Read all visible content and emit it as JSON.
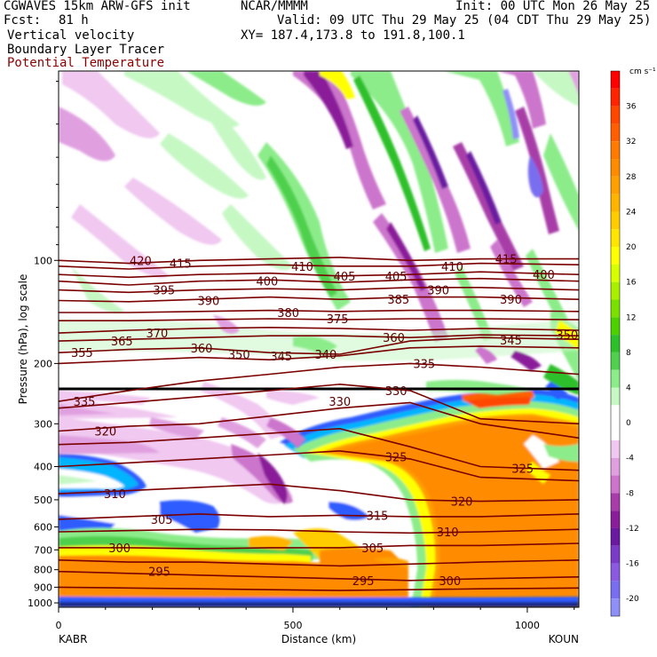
{
  "header": {
    "model": "CGWAVES 15km ARW-GFS init",
    "org": "NCAR/MMMM",
    "init": "Init: 00 UTC Mon 26 May 25",
    "fcst_label": "Fcst:",
    "fcst_value": "81 h",
    "valid": "Valid: 09 UTC Thu 29 May 25 (04 CDT Thu 29 May 25)",
    "xy": "XY= 187.4,173.8 to 191.8,100.1",
    "fields": [
      "Vertical velocity",
      "Boundary Layer Tracer",
      "Potential Temperature"
    ]
  },
  "colors": {
    "contour_theta": "#7a0000",
    "potential_temperature_label": "#8b0000",
    "background": "#ffffff"
  },
  "chart_data": {
    "type": "heatmap",
    "title": "",
    "xlabel": "Distance (km)",
    "ylabel": "Pressure (hPa), log scale",
    "x_ticks": [
      "0",
      "500",
      "1000"
    ],
    "x_tick_values": [
      0,
      500,
      1000
    ],
    "x_range": [
      0,
      1110
    ],
    "y_ticks": [
      "100",
      "200",
      "300",
      "400",
      "500",
      "600",
      "700",
      "800",
      "900",
      "1000"
    ],
    "y_tick_values": [
      100,
      200,
      300,
      400,
      500,
      600,
      700,
      800,
      900,
      1000
    ],
    "y_range_hpa": [
      1030,
      28
    ],
    "y_scale": "log",
    "endpoints": {
      "left": "KABR",
      "right": "KOUN"
    },
    "colorbar": {
      "units": "cm s⁻¹",
      "tick_labels": [
        "36",
        "32",
        "28",
        "24",
        "20",
        "16",
        "12",
        "8",
        "4",
        "0",
        "-4",
        "-8",
        "-12",
        "-16",
        "-20"
      ],
      "tick_values": [
        36,
        32,
        28,
        24,
        20,
        16,
        12,
        8,
        4,
        0,
        -4,
        -8,
        -12,
        -16,
        -20
      ],
      "levels": [
        {
          "min": 38,
          "max": 40,
          "color": "#ff0000"
        },
        {
          "min": 36,
          "max": 38,
          "color": "#ff2400"
        },
        {
          "min": 34,
          "max": 36,
          "color": "#ff4700"
        },
        {
          "min": 32,
          "max": 34,
          "color": "#ff5f00"
        },
        {
          "min": 30,
          "max": 32,
          "color": "#ff7a00"
        },
        {
          "min": 28,
          "max": 30,
          "color": "#ff8c00"
        },
        {
          "min": 26,
          "max": 28,
          "color": "#ffa000"
        },
        {
          "min": 24,
          "max": 26,
          "color": "#ffb400"
        },
        {
          "min": 22,
          "max": 24,
          "color": "#ffcc00"
        },
        {
          "min": 20,
          "max": 22,
          "color": "#ffe600"
        },
        {
          "min": 18,
          "max": 20,
          "color": "#ffff00"
        },
        {
          "min": 16,
          "max": 18,
          "color": "#d8ff00"
        },
        {
          "min": 14,
          "max": 16,
          "color": "#a8f000"
        },
        {
          "min": 12,
          "max": 14,
          "color": "#7ae000"
        },
        {
          "min": 10,
          "max": 12,
          "color": "#4cd000"
        },
        {
          "min": 8,
          "max": 10,
          "color": "#2ec02a"
        },
        {
          "min": 6,
          "max": 8,
          "color": "#50d04e"
        },
        {
          "min": 4,
          "max": 6,
          "color": "#8cec8a"
        },
        {
          "min": 2,
          "max": 4,
          "color": "#c6f8c4"
        },
        {
          "min": -2,
          "max": 2,
          "color": "#ffffff"
        },
        {
          "min": -4,
          "max": -2,
          "color": "#f0c8f0"
        },
        {
          "min": -6,
          "max": -4,
          "color": "#e0a0e0"
        },
        {
          "min": -8,
          "max": -6,
          "color": "#cc74cc"
        },
        {
          "min": -10,
          "max": -8,
          "color": "#a83ca8"
        },
        {
          "min": -12,
          "max": -10,
          "color": "#8a1e9a"
        },
        {
          "min": -14,
          "max": -12,
          "color": "#6a1aa0"
        },
        {
          "min": -16,
          "max": -14,
          "color": "#7a3cc8"
        },
        {
          "min": -18,
          "max": -16,
          "color": "#8a5ae0"
        },
        {
          "min": -20,
          "max": -18,
          "color": "#7a6ef0"
        },
        {
          "min": -22,
          "max": -20,
          "color": "#8f8ff8"
        }
      ]
    },
    "theta_contour_labels": [
      {
        "value": "420",
        "x_km": 175,
        "p_hpa": 100
      },
      {
        "value": "415",
        "x_km": 260,
        "p_hpa": 102
      },
      {
        "value": "410",
        "x_km": 520,
        "p_hpa": 104
      },
      {
        "value": "405",
        "x_km": 610,
        "p_hpa": 111
      },
      {
        "value": "405",
        "x_km": 720,
        "p_hpa": 111
      },
      {
        "value": "410",
        "x_km": 840,
        "p_hpa": 104
      },
      {
        "value": "415",
        "x_km": 955,
        "p_hpa": 99
      },
      {
        "value": "400",
        "x_km": 1035,
        "p_hpa": 110
      },
      {
        "value": "400",
        "x_km": 445,
        "p_hpa": 115
      },
      {
        "value": "395",
        "x_km": 225,
        "p_hpa": 122
      },
      {
        "value": "390",
        "x_km": 320,
        "p_hpa": 131
      },
      {
        "value": "385",
        "x_km": 725,
        "p_hpa": 130
      },
      {
        "value": "390",
        "x_km": 810,
        "p_hpa": 122
      },
      {
        "value": "390",
        "x_km": 965,
        "p_hpa": 130
      },
      {
        "value": "380",
        "x_km": 490,
        "p_hpa": 142
      },
      {
        "value": "375",
        "x_km": 595,
        "p_hpa": 148
      },
      {
        "value": "370",
        "x_km": 210,
        "p_hpa": 163
      },
      {
        "value": "365",
        "x_km": 135,
        "p_hpa": 172
      },
      {
        "value": "360",
        "x_km": 305,
        "p_hpa": 180
      },
      {
        "value": "360",
        "x_km": 715,
        "p_hpa": 168
      },
      {
        "value": "355",
        "x_km": 50,
        "p_hpa": 186
      },
      {
        "value": "350",
        "x_km": 385,
        "p_hpa": 188
      },
      {
        "value": "345",
        "x_km": 475,
        "p_hpa": 190
      },
      {
        "value": "340",
        "x_km": 570,
        "p_hpa": 188
      },
      {
        "value": "345",
        "x_km": 965,
        "p_hpa": 171
      },
      {
        "value": "350",
        "x_km": 1085,
        "p_hpa": 165
      },
      {
        "value": "335",
        "x_km": 55,
        "p_hpa": 258
      },
      {
        "value": "335",
        "x_km": 780,
        "p_hpa": 200
      },
      {
        "value": "330",
        "x_km": 600,
        "p_hpa": 258
      },
      {
        "value": "330",
        "x_km": 720,
        "p_hpa": 240
      },
      {
        "value": "320",
        "x_km": 100,
        "p_hpa": 315
      },
      {
        "value": "325",
        "x_km": 720,
        "p_hpa": 375
      },
      {
        "value": "325",
        "x_km": 990,
        "p_hpa": 405
      },
      {
        "value": "320",
        "x_km": 860,
        "p_hpa": 505
      },
      {
        "value": "310",
        "x_km": 120,
        "p_hpa": 480
      },
      {
        "value": "315",
        "x_km": 680,
        "p_hpa": 555
      },
      {
        "value": "305",
        "x_km": 220,
        "p_hpa": 570
      },
      {
        "value": "310",
        "x_km": 830,
        "p_hpa": 620
      },
      {
        "value": "300",
        "x_km": 130,
        "p_hpa": 690
      },
      {
        "value": "305",
        "x_km": 670,
        "p_hpa": 690
      },
      {
        "value": "295",
        "x_km": 215,
        "p_hpa": 810
      },
      {
        "value": "295",
        "x_km": 650,
        "p_hpa": 860
      },
      {
        "value": "300",
        "x_km": 835,
        "p_hpa": 860
      }
    ]
  }
}
